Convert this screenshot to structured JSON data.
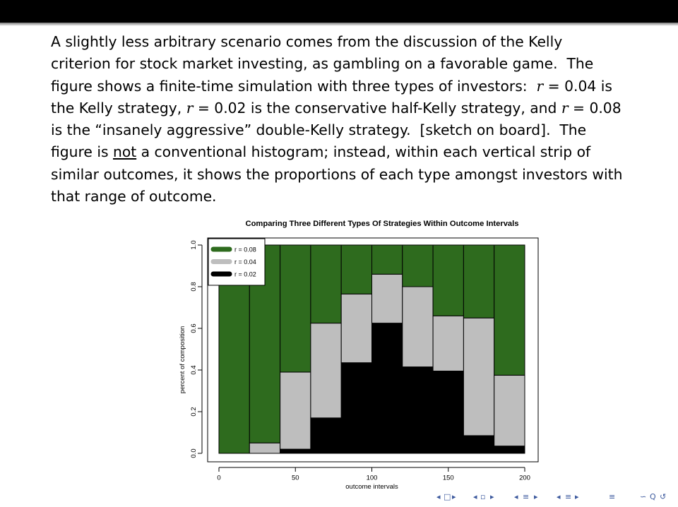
{
  "slide": {
    "paragraph": [
      [
        "A slightly less arbitrary scenario comes from the discussion of the Kelly"
      ],
      [
        "criterion for stock market investing, as gambling on a favorable game.  The"
      ],
      [
        "figure shows a finite-time simulation with three types of investors:  ",
        {
          "math": "r"
        },
        " = 0.04 is"
      ],
      [
        "the Kelly strategy, ",
        {
          "math": "r"
        },
        " = 0.02 is the conservative half-Kelly strategy, and ",
        {
          "math": "r"
        },
        " = 0.08"
      ],
      [
        "is the “insanely aggressive” double-Kelly strategy.  [sketch on board].  The"
      ],
      [
        "figure is ",
        {
          "u": "not"
        },
        " a conventional histogram; instead, within each vertical strip of"
      ],
      [
        "similar outcomes, it shows the proportions of each type amongst investors with"
      ],
      [
        "that range of outcome."
      ]
    ]
  },
  "chart_data": {
    "type": "bar",
    "stacked": true,
    "title": "Comparing Three Different Types Of Strategies Within Outcome Intervals",
    "xlabel": "outcome intervals",
    "ylabel": "percent of composition",
    "xlim": [
      0,
      200
    ],
    "ylim": [
      0,
      1
    ],
    "xticks": [
      "0",
      "50",
      "100",
      "150",
      "200"
    ],
    "yticks": [
      "0.0",
      "0.2",
      "0.4",
      "0.6",
      "0.8",
      "1.0"
    ],
    "legend_position": "top-left",
    "bin_edges": [
      0,
      20,
      40,
      60,
      80,
      100,
      120,
      140,
      160,
      180,
      200
    ],
    "series": [
      {
        "name": "r = 0.02",
        "color": "#000000",
        "values": [
          0.0,
          0.0,
          0.02,
          0.17,
          0.435,
          0.625,
          0.415,
          0.395,
          0.085,
          0.035
        ]
      },
      {
        "name": "r = 0.04",
        "color": "#bebebe",
        "values": [
          0.0,
          0.05,
          0.37,
          0.455,
          0.33,
          0.235,
          0.385,
          0.265,
          0.565,
          0.34
        ]
      },
      {
        "name": "r = 0.08",
        "color": "#2e6b1e",
        "values": [
          1.0,
          0.95,
          0.61,
          0.375,
          0.235,
          0.14,
          0.2,
          0.34,
          0.35,
          0.625
        ]
      }
    ]
  },
  "nav": {
    "symbols": [
      "◂",
      "□",
      "▸",
      "◂",
      "▫",
      "▸",
      "◂",
      "≡",
      "▸",
      "◂",
      "≡",
      "▸",
      "≡",
      "∽",
      "Q",
      "↺"
    ],
    "color": "#3d5a9e"
  }
}
